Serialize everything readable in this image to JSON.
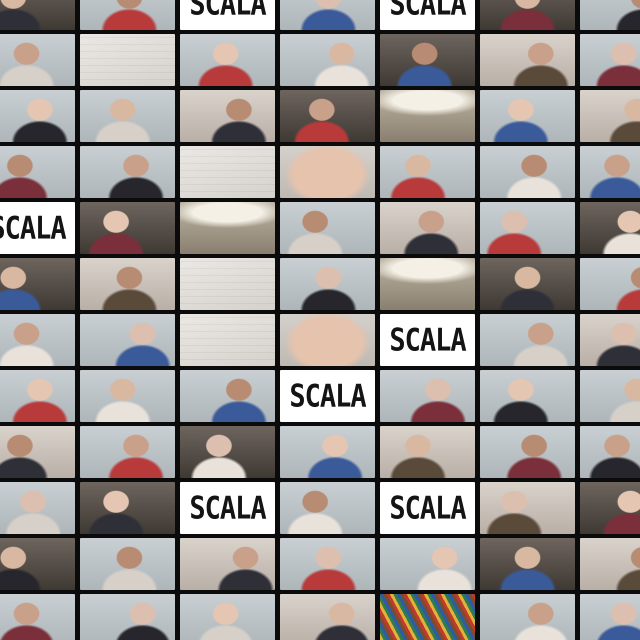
{
  "brand_text": "SCALA",
  "colors": {
    "background": "#0b0b0b",
    "brand_card": "#ffffff",
    "brand_text": "#141414"
  }
}
